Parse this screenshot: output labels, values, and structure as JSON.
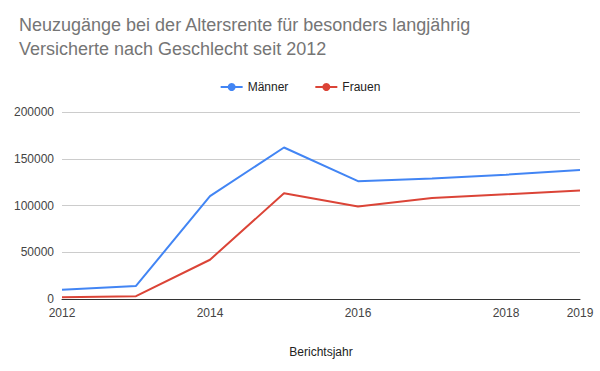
{
  "chart_data": {
    "type": "line",
    "title": "Neuzugänge bei der Altersrente für besonders langjährig Versicherte nach Geschlecht seit 2012",
    "x_label": "Berichtsjahr",
    "x": [
      2012,
      2013,
      2014,
      2015,
      2016,
      2017,
      2018,
      2019
    ],
    "series": [
      {
        "name": "Männer",
        "color": "#4285f4",
        "values": [
          10000,
          14000,
          110000,
          162000,
          126000,
          129000,
          133000,
          138000
        ]
      },
      {
        "name": "Frauen",
        "color": "#db4437",
        "values": [
          2000,
          3000,
          42000,
          113000,
          99000,
          108000,
          112000,
          116000
        ]
      }
    ],
    "xlim": [
      2012,
      2019
    ],
    "xticks": [
      2012,
      2014,
      2016,
      2018
    ],
    "ylim": [
      0,
      200000
    ],
    "yticks": [
      0,
      50000,
      100000,
      150000,
      200000
    ],
    "grid": true,
    "legend": "top"
  }
}
